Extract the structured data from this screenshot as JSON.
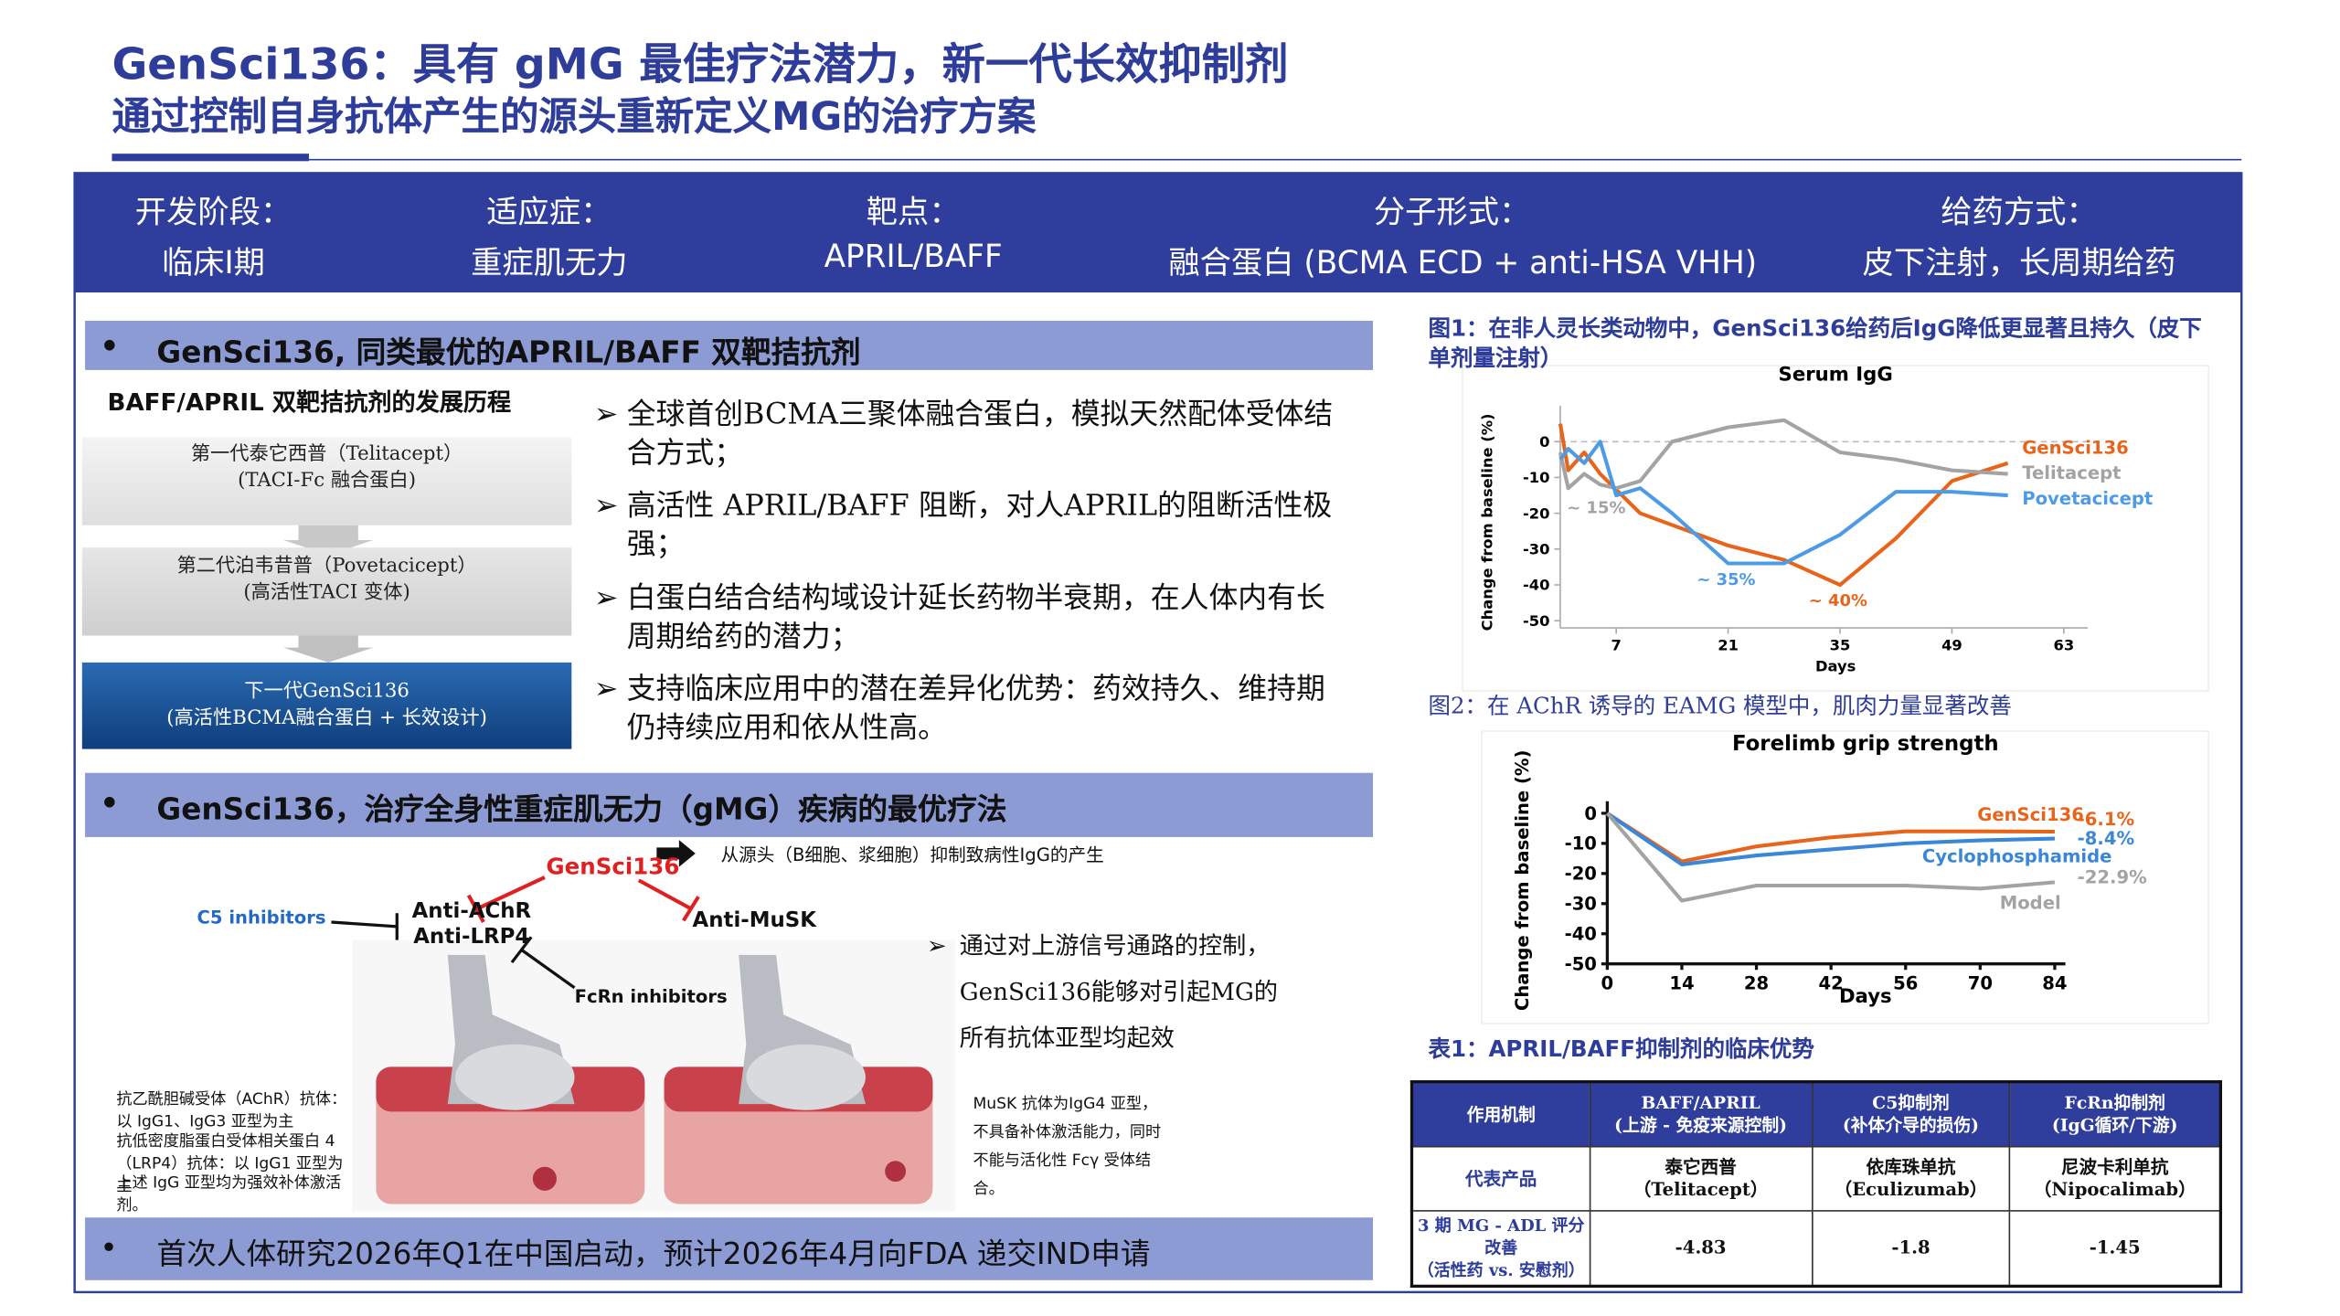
{
  "header": {
    "title": "GenSci136：具有 gMG 最佳疗法潜力，新一代长效抑制剂",
    "subtitle": "通过控制自身抗体产生的源头重新定义MG的治疗方案"
  },
  "info_bar": [
    {
      "label": "开发阶段：",
      "value": "临床I期"
    },
    {
      "label": "适应症：",
      "value": "重症肌无力"
    },
    {
      "label": "靶点：",
      "value": "APRIL/BAFF"
    },
    {
      "label": "分子形式：",
      "value": "融合蛋白 (BCMA ECD + anti-HSA VHH)"
    },
    {
      "label": "给药方式：",
      "value": "皮下注射，长周期给药"
    }
  ],
  "section1": {
    "heading": "GenSci136, 同类最优的APRIL/BAFF 双靶拮抗剂",
    "timeline": {
      "title": "BAFF/APRIL 双靶拮抗剂的发展历程",
      "stages": [
        {
          "name": "第一代泰它西普（Telitacept）",
          "desc": "(TACI-Fc 融合蛋白)"
        },
        {
          "name": "第二代泊韦昔普（Povetacicept）",
          "desc": "(高活性TACI 变体)"
        },
        {
          "name": "下一代GenSci136",
          "desc": "(高活性BCMA融合蛋白 + 长效设计)"
        }
      ]
    },
    "bullets": [
      "全球首创BCMA三聚体融合蛋白，模拟天然配体受体结合方式；",
      "高活性 APRIL/BAFF 阻断，对人APRIL的阻断活性极强；",
      "白蛋白结合结构域设计延长药物半衰期，在人体内有长周期给药的潜力；",
      "支持临床应用中的潜在差异化优势：药效持久、维持期仍持续应用和依从性高。"
    ]
  },
  "section2": {
    "heading": "GenSci136，治疗全身性重症肌无力（gMG）疾病的最优疗法",
    "diagram": {
      "drug": "GenSci136",
      "source_note": "从源头（B细胞、浆细胞）抑制致病性IgG的产生",
      "c5": "C5 inhibitors",
      "achr": "Anti-AChR",
      "lrp4": "Anti-LRP4",
      "musk": "Anti-MuSK",
      "fcrn": "FcRn inhibitors"
    },
    "left_notes": [
      "抗乙酰胆碱受体（AChR）抗体：以 IgG1、IgG3 亚型为主",
      "抗低密度脂蛋白受体相关蛋白 4（LRP4）抗体：以 IgG1 亚型为主",
      "上述 IgG 亚型均为强效补体激活剂。"
    ],
    "right_note": "MuSK 抗体为IgG4 亚型，不具备补体激活能力，同时不能与活化性 Fcγ 受体结合。",
    "bullet": "通过对上游信号通路的控制，GenSci136能够对引起MG的所有抗体亚型均起效"
  },
  "footer": "首次人体研究2026年Q1在中国启动，预计2026年4月向FDA 递交IND申请",
  "fig1": {
    "caption": "图1：在非人灵长类动物中，GenSci136给药后IgG降低更显著且持久（皮下单剂量注射）",
    "chart": {
      "type": "line",
      "title": "Serum IgG",
      "xlabel": "Days",
      "ylabel": "Change from baseline (%)",
      "xlim": [
        0,
        66
      ],
      "ylim": [
        -52,
        10
      ],
      "xticks": [
        7,
        21,
        35,
        49,
        63
      ],
      "yticks": [
        0,
        -10,
        -20,
        -30,
        -40,
        -50
      ],
      "series": [
        {
          "name": "GenSci136",
          "color": "#e8641b",
          "x": [
            0,
            1,
            3,
            5,
            10,
            21,
            28,
            35,
            42,
            49,
            56
          ],
          "values": [
            5,
            -8,
            -3,
            -9,
            -20,
            -29,
            -33,
            -40,
            -27,
            -11,
            -6
          ]
        },
        {
          "name": "Telitacept",
          "color": "#a3a3a3",
          "x": [
            0,
            1,
            3,
            5,
            7,
            10,
            14,
            21,
            28,
            35,
            42,
            49,
            56
          ],
          "values": [
            -3,
            -13,
            -9,
            -12,
            -13,
            -11,
            0,
            4,
            6,
            -3,
            -5,
            -8,
            -9
          ]
        },
        {
          "name": "Povetacicept",
          "color": "#4d9be6",
          "x": [
            0,
            1,
            3,
            5,
            7,
            10,
            14,
            21,
            28,
            35,
            42,
            49,
            56
          ],
          "values": [
            -5,
            -2,
            -6,
            0,
            -15,
            -13,
            -20,
            -34,
            -34,
            -26,
            -14,
            -14,
            -15
          ]
        }
      ],
      "annotations": [
        {
          "text": "~ 15%",
          "color": "#a3a3a3"
        },
        {
          "text": "~ 35%",
          "color": "#4d9be6"
        },
        {
          "text": "~ 40%",
          "color": "#e8641b"
        }
      ]
    }
  },
  "fig2": {
    "caption": "图2：在 AChR 诱导的 EAMG 模型中，肌肉力量显著改善",
    "chart": {
      "type": "line",
      "title": "Forelimb grip strength",
      "xlabel": "Days",
      "ylabel": "Change from baseline (%)",
      "xlim": [
        0,
        86
      ],
      "ylim": [
        -50,
        4
      ],
      "xticks": [
        0,
        14,
        28,
        42,
        56,
        70,
        84
      ],
      "yticks": [
        0,
        -10,
        -20,
        -30,
        -40,
        -50
      ],
      "series": [
        {
          "name": "GenSci136",
          "color": "#e8641b",
          "x": [
            0,
            14,
            28,
            42,
            56,
            70,
            84
          ],
          "values": [
            0,
            -16,
            -11,
            -8,
            -6,
            -6,
            -6.1
          ],
          "end_label": "-6.1%"
        },
        {
          "name": "Cyclophosphamide",
          "color": "#3a86d8",
          "x": [
            0,
            14,
            28,
            42,
            56,
            70,
            84
          ],
          "values": [
            0,
            -17,
            -14,
            -12,
            -10,
            -9,
            -8.4
          ],
          "end_label": "-8.4%"
        },
        {
          "name": "Model",
          "color": "#a3a3a3",
          "x": [
            0,
            14,
            28,
            42,
            56,
            70,
            84
          ],
          "values": [
            0,
            -29,
            -24,
            -24,
            -24,
            -25,
            -22.9
          ],
          "end_label": "-22.9%"
        }
      ]
    }
  },
  "table": {
    "caption": "表1：APRIL/BAFF抑制剂的临床优势",
    "columns": [
      {
        "name": "作用机制"
      },
      {
        "name": "BAFF/APRIL",
        "note": "(上游 - 免疫来源控制)"
      },
      {
        "name": "C5抑制剂",
        "note": "(补体介导的损伤)"
      },
      {
        "name": "FcRn抑制剂",
        "note": "(IgG循环/下游)"
      }
    ],
    "rows": [
      {
        "label": "代表产品",
        "cells": [
          {
            "name": "泰它西普",
            "note": "（Telitacept）"
          },
          {
            "name": "依库珠单抗",
            "note": "（Eculizumab）"
          },
          {
            "name": "尼波卡利单抗",
            "note": "（Nipocalimab）"
          }
        ]
      },
      {
        "label": "3 期 MG - ADL 评分改善",
        "note": "（活性药 vs. 安慰剂）",
        "cells": [
          {
            "name": -4.83
          },
          {
            "name": -1.8
          },
          {
            "name": -1.45
          }
        ]
      }
    ]
  }
}
